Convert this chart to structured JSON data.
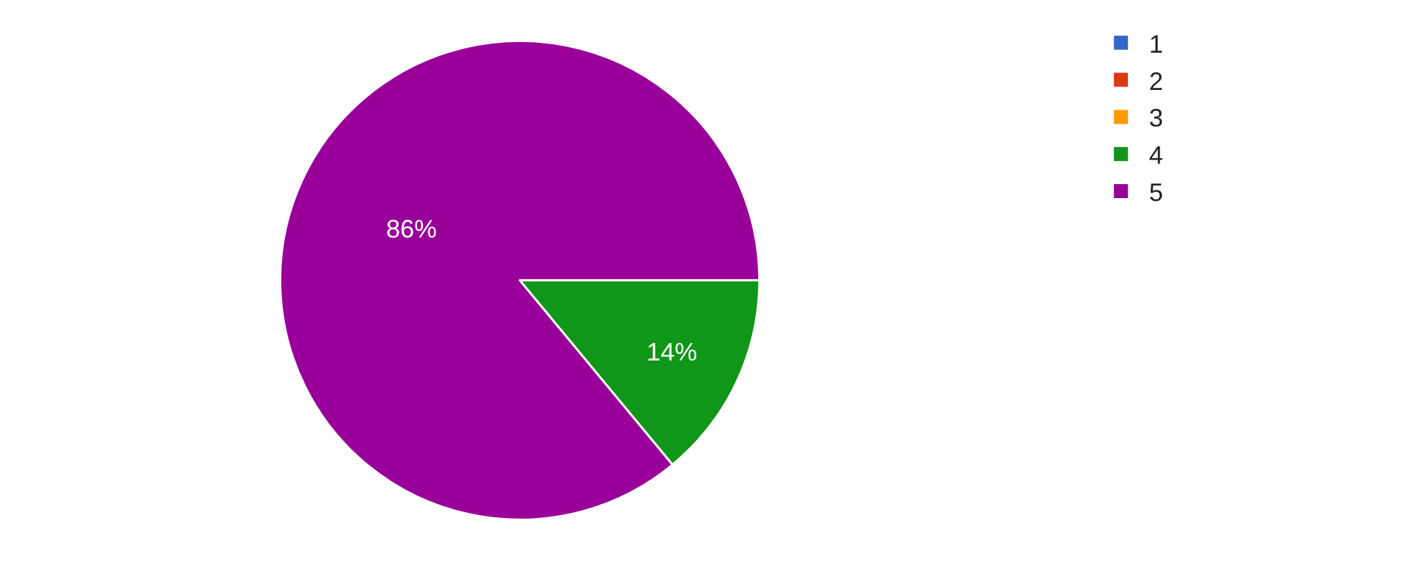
{
  "chart_data": {
    "type": "pie",
    "categories": [
      "1",
      "2",
      "3",
      "4",
      "5"
    ],
    "values": [
      0,
      0,
      0,
      14,
      86
    ],
    "colors": [
      "#3366cc",
      "#dc3912",
      "#ff9900",
      "#109618",
      "#990099"
    ],
    "value_labels": [
      null,
      null,
      null,
      "14%",
      "86%"
    ],
    "legend": "top right"
  }
}
